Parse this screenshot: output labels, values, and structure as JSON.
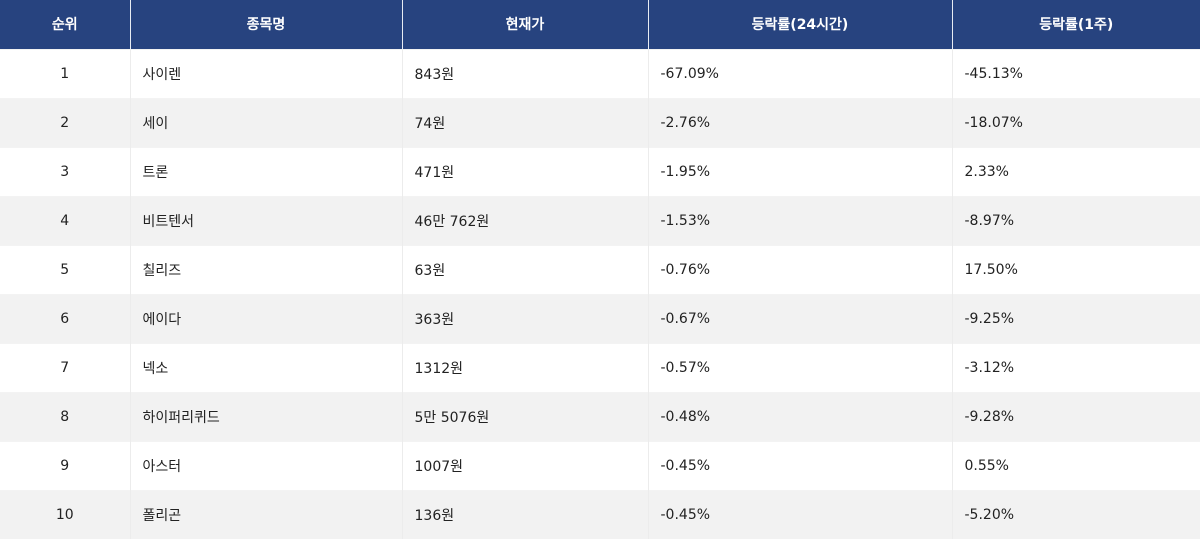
{
  "table": {
    "headers": [
      "순위",
      "종목명",
      "현재가",
      "등락률(24시간)",
      "등락률(1주)"
    ],
    "header_bg": "#27437f",
    "rows": [
      {
        "rank": "1",
        "name": "사이렌",
        "price": "843원",
        "change_24h": "-67.09%",
        "change_1w": "-45.13%"
      },
      {
        "rank": "2",
        "name": "세이",
        "price": "74원",
        "change_24h": "-2.76%",
        "change_1w": "-18.07%"
      },
      {
        "rank": "3",
        "name": "트론",
        "price": "471원",
        "change_24h": "-1.95%",
        "change_1w": "2.33%"
      },
      {
        "rank": "4",
        "name": "비트텐서",
        "price": "46만 762원",
        "change_24h": "-1.53%",
        "change_1w": "-8.97%"
      },
      {
        "rank": "5",
        "name": "칠리즈",
        "price": "63원",
        "change_24h": "-0.76%",
        "change_1w": "17.50%"
      },
      {
        "rank": "6",
        "name": "에이다",
        "price": "363원",
        "change_24h": "-0.67%",
        "change_1w": "-9.25%"
      },
      {
        "rank": "7",
        "name": "넥소",
        "price": "1312원",
        "change_24h": "-0.57%",
        "change_1w": "-3.12%"
      },
      {
        "rank": "8",
        "name": "하이퍼리퀴드",
        "price": "5만 5076원",
        "change_24h": "-0.48%",
        "change_1w": "-9.28%"
      },
      {
        "rank": "9",
        "name": "아스터",
        "price": "1007원",
        "change_24h": "-0.45%",
        "change_1w": "0.55%"
      },
      {
        "rank": "10",
        "name": "폴리곤",
        "price": "136원",
        "change_24h": "-0.45%",
        "change_1w": "-5.20%"
      }
    ]
  }
}
